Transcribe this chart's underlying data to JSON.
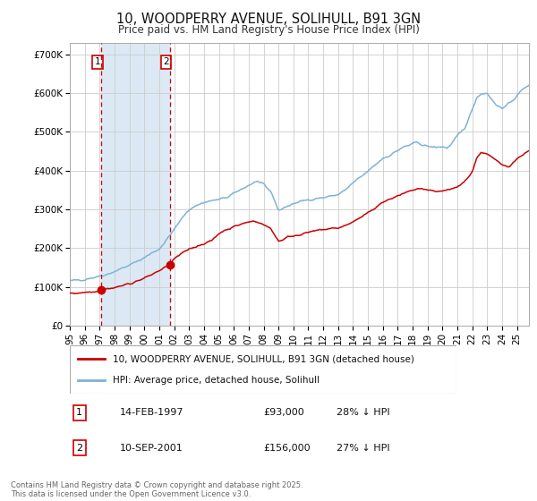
{
  "title": "10, WOODPERRY AVENUE, SOLIHULL, B91 3GN",
  "subtitle": "Price paid vs. HM Land Registry's House Price Index (HPI)",
  "title_fontsize": 10.5,
  "subtitle_fontsize": 8.5,
  "background_color": "#ffffff",
  "plot_bg_color": "#ffffff",
  "grid_color": "#cccccc",
  "purchase1": {
    "date_num": 1997.12,
    "price": 93000,
    "label": "1",
    "date_str": "14-FEB-1997",
    "price_str": "£93,000",
    "hpi_pct": "28% ↓ HPI"
  },
  "purchase2": {
    "date_num": 2001.7,
    "price": 156000,
    "label": "2",
    "date_str": "10-SEP-2001",
    "price_str": "£156,000",
    "hpi_pct": "27% ↓ HPI"
  },
  "shaded_region": [
    1997.12,
    2001.7
  ],
  "shaded_color": "#dce9f5",
  "vline_color": "#cc0000",
  "dot_color": "#cc0000",
  "hpi_line_color": "#7fb3d3",
  "price_line_color": "#cc0000",
  "ylim": [
    0,
    730000
  ],
  "xlim": [
    1995.0,
    2025.8
  ],
  "yticks": [
    0,
    100000,
    200000,
    300000,
    400000,
    500000,
    600000,
    700000
  ],
  "ytick_labels": [
    "£0",
    "£100K",
    "£200K",
    "£300K",
    "£400K",
    "£500K",
    "£600K",
    "£700K"
  ],
  "xtick_years": [
    1995,
    1996,
    1997,
    1998,
    1999,
    2000,
    2001,
    2002,
    2003,
    2004,
    2005,
    2006,
    2007,
    2008,
    2009,
    2010,
    2011,
    2012,
    2013,
    2014,
    2015,
    2016,
    2017,
    2018,
    2019,
    2020,
    2021,
    2022,
    2023,
    2024,
    2025
  ],
  "legend_house_label": "10, WOODPERRY AVENUE, SOLIHULL, B91 3GN (detached house)",
  "legend_hpi_label": "HPI: Average price, detached house, Solihull",
  "footnote": "Contains HM Land Registry data © Crown copyright and database right 2025.\nThis data is licensed under the Open Government Licence v3.0.",
  "footnote_fontsize": 6.0,
  "box_color": "#cc0000",
  "label_box_facecolor": "#ffffff"
}
